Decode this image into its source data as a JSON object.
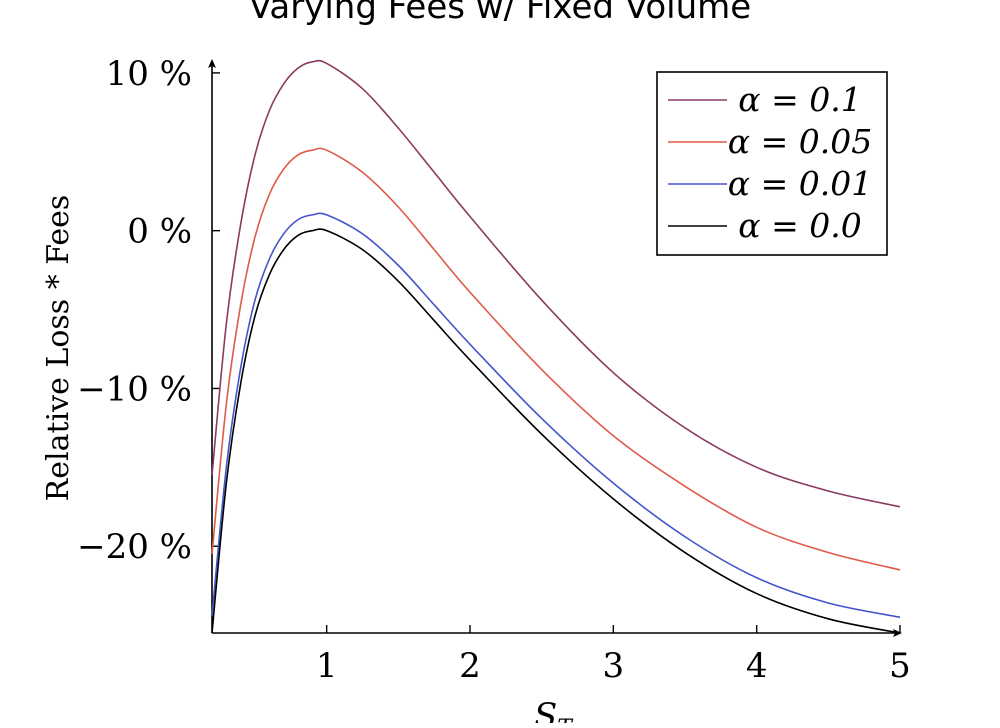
{
  "chart_data": {
    "type": "line",
    "title": "Varying Fees w/ Fixed Volume",
    "xlabel": "S_T",
    "ylabel": "Relative Loss * Fees",
    "xlim": [
      0.2,
      5
    ],
    "ylim": [
      -25.5,
      10.5
    ],
    "x_ticks": [
      1,
      2,
      3,
      4,
      5
    ],
    "x_tick_labels": [
      "1",
      "2",
      "3",
      "4",
      "5"
    ],
    "y_ticks": [
      10,
      0,
      -10,
      -20
    ],
    "y_tick_labels": [
      "10 %",
      "0 %",
      "−10 %",
      "−20 %"
    ],
    "grid": false,
    "legend_position": "top-right",
    "x": [
      0.2,
      0.3,
      0.4,
      0.5,
      0.6,
      0.7,
      0.8,
      0.9,
      1.0,
      1.25,
      1.5,
      1.75,
      2.0,
      2.5,
      3.0,
      3.5,
      4.0,
      4.5,
      5.0
    ],
    "series": [
      {
        "name": "α = 0.1",
        "color": "#8b3a62",
        "values": [
          -15.5,
          -5.9,
          0.4,
          4.8,
          7.6,
          9.3,
          10.3,
          10.7,
          10.6,
          9.0,
          6.5,
          3.7,
          0.9,
          -4.4,
          -9.0,
          -12.5,
          -15.0,
          -16.5,
          -17.5
        ]
      },
      {
        "name": "α = 0.05",
        "color": "#e05a4a",
        "values": [
          -20.5,
          -11.0,
          -4.7,
          -0.4,
          2.3,
          3.9,
          4.8,
          5.1,
          5.1,
          3.7,
          1.5,
          -1.2,
          -3.9,
          -8.8,
          -13.0,
          -16.2,
          -18.8,
          -20.4,
          -21.5
        ]
      },
      {
        "name": "α = 0.01",
        "color": "#4455cc",
        "values": [
          -24.4,
          -15.0,
          -8.7,
          -4.4,
          -1.8,
          -0.2,
          0.7,
          1.0,
          1.0,
          -0.2,
          -2.2,
          -4.7,
          -7.2,
          -11.9,
          -16.0,
          -19.4,
          -22.0,
          -23.6,
          -24.5
        ]
      },
      {
        "name": "α = 0.0",
        "color": "#000000",
        "values": [
          -25.5,
          -16.0,
          -9.7,
          -5.4,
          -2.8,
          -1.2,
          -0.3,
          0.0,
          0.0,
          -1.2,
          -3.2,
          -5.7,
          -8.2,
          -12.9,
          -17.0,
          -20.4,
          -23.0,
          -24.6,
          -25.5
        ]
      }
    ]
  }
}
